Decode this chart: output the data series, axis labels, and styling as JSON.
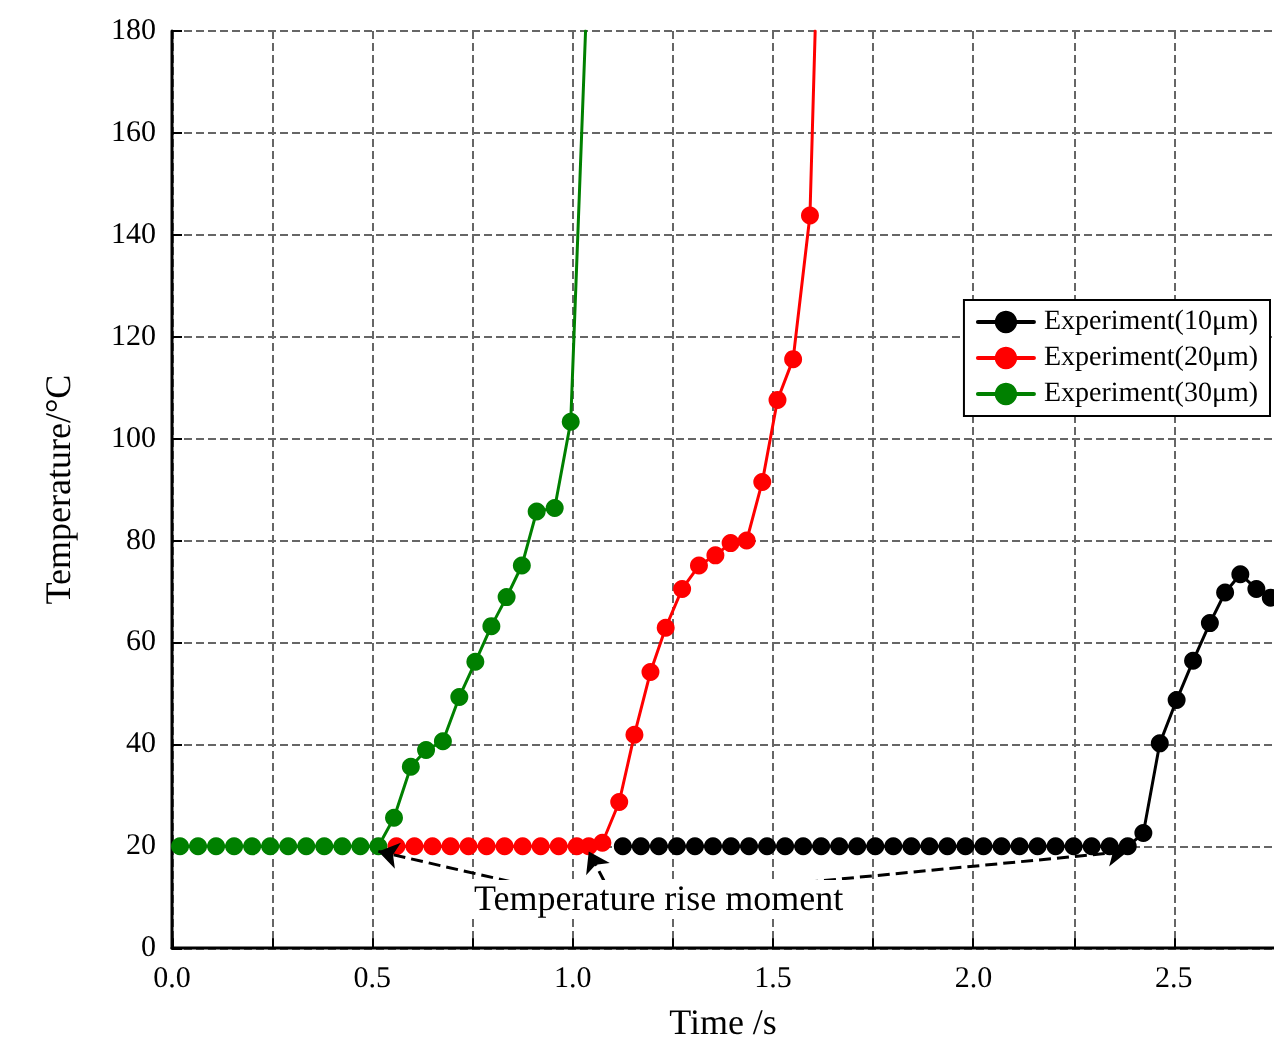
{
  "chart_data": {
    "type": "line",
    "xlabel": "Time /s",
    "ylabel": "Temperature/°C",
    "xlim": [
      0,
      2.75
    ],
    "ylim": [
      0,
      180
    ],
    "xticks": [
      {
        "value": 0,
        "label": "0.0"
      },
      {
        "value": 0.25,
        "label": null
      },
      {
        "value": 0.5,
        "label": "0.5"
      },
      {
        "value": 0.75,
        "label": null
      },
      {
        "value": 1,
        "label": "1.0"
      },
      {
        "value": 1.25,
        "label": null
      },
      {
        "value": 1.5,
        "label": "1.5"
      },
      {
        "value": 1.75,
        "label": null
      },
      {
        "value": 2,
        "label": "2.0"
      },
      {
        "value": 2.25,
        "label": null
      },
      {
        "value": 2.5,
        "label": "2.5"
      }
    ],
    "yticks": [
      0,
      20,
      40,
      60,
      80,
      100,
      120,
      140,
      160,
      180
    ],
    "grid": true,
    "legend": "right",
    "marker": "circle",
    "line_style": "solid",
    "annotations": [
      {
        "text": "Temperature rise moment",
        "x": 1.04,
        "y": 20
      }
    ],
    "series": [
      {
        "name": "Experiment(10μm)",
        "color": "#000000",
        "x": [
          1.125,
          1.17,
          1.215,
          1.26,
          1.305,
          1.35,
          1.395,
          1.44,
          1.485,
          1.53,
          1.575,
          1.62,
          1.665,
          1.71,
          1.755,
          1.8,
          1.845,
          1.89,
          1.935,
          1.98,
          2.025,
          2.07,
          2.115,
          2.16,
          2.205,
          2.25,
          2.295,
          2.34,
          2.385,
          2.424,
          2.465,
          2.507,
          2.548,
          2.59,
          2.628,
          2.666,
          2.706,
          2.742
        ],
        "values": [
          20,
          20,
          20,
          20,
          20,
          20,
          20,
          20,
          20,
          20,
          20,
          20,
          20,
          20,
          20,
          20,
          20,
          20,
          20,
          20,
          20,
          20,
          20,
          20,
          20,
          20,
          20,
          20,
          20,
          22.6,
          40.2,
          48.7,
          56.4,
          63.8,
          69.8,
          73.4,
          70.5,
          68.8
        ]
      },
      {
        "name": "Experiment(20μm)",
        "color": "#ff0000",
        "x": [
          0.56,
          0.605,
          0.65,
          0.695,
          0.74,
          0.785,
          0.83,
          0.875,
          0.92,
          0.965,
          1.01,
          1.04,
          1.074,
          1.116,
          1.154,
          1.194,
          1.232,
          1.273,
          1.315,
          1.356,
          1.394,
          1.434,
          1.473,
          1.511,
          1.55,
          1.592,
          1.605
        ],
        "values": [
          20,
          20,
          20,
          20,
          20,
          20,
          20,
          20,
          20,
          20,
          20,
          20,
          20.7,
          28.7,
          41.9,
          54.2,
          62.9,
          70.5,
          75.1,
          77.1,
          79.5,
          80,
          91.5,
          107.6,
          115.6,
          143.8,
          180
        ]
      },
      {
        "name": "Experiment(30μm)",
        "color": "#008000",
        "x": [
          0.02,
          0.065,
          0.11,
          0.155,
          0.2,
          0.245,
          0.29,
          0.335,
          0.38,
          0.425,
          0.47,
          0.515,
          0.554,
          0.596,
          0.634,
          0.676,
          0.717,
          0.757,
          0.797,
          0.835,
          0.873,
          0.91,
          0.955,
          0.995,
          1.032
        ],
        "values": [
          20,
          20,
          20,
          20,
          20,
          20,
          20,
          20,
          20,
          20,
          20,
          20,
          25.6,
          35.6,
          38.9,
          40.6,
          49.3,
          56.2,
          63.2,
          68.9,
          75.1,
          85.7,
          86.4,
          103.3,
          180
        ]
      }
    ]
  }
}
